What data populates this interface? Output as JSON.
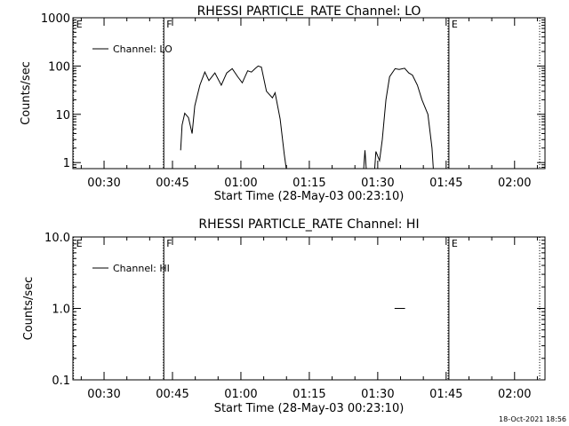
{
  "footer": {
    "timestamp": "18-Oct-2021 18:56"
  },
  "chart_data": [
    {
      "type": "line",
      "title": "RHESSI PARTICLE_RATE Channel: LO",
      "xlabel": "Start Time (28-May-03 00:23:10)",
      "ylabel": "Counts/sec",
      "x_unit": "minutes of day (00:00 = 0)",
      "xlim": [
        23.17,
        126.67
      ],
      "ylim": [
        0.75,
        1000
      ],
      "y_scale": "log",
      "x_ticks": [
        {
          "value": 30,
          "label": "00:30"
        },
        {
          "value": 45,
          "label": "00:45"
        },
        {
          "value": 60,
          "label": "01:00"
        },
        {
          "value": 75,
          "label": "01:15"
        },
        {
          "value": 90,
          "label": "01:30"
        },
        {
          "value": 105,
          "label": "01:45"
        },
        {
          "value": 120,
          "label": "02:00"
        }
      ],
      "y_ticks": [
        {
          "value": 1,
          "label": "1"
        },
        {
          "value": 10,
          "label": "10"
        },
        {
          "value": 100,
          "label": "100"
        },
        {
          "value": 1000,
          "label": "1000"
        }
      ],
      "markers": [
        {
          "label": "E",
          "x": 23.3,
          "style": "dotted"
        },
        {
          "label": "F",
          "x": 43.1,
          "style": "solid"
        },
        {
          "label": "E",
          "x": 105.6,
          "style": "solid"
        }
      ],
      "extra_lines": [
        {
          "x": 43.0,
          "style": "dotted"
        },
        {
          "x": 105.4,
          "style": "dotted"
        },
        {
          "x": 125.5,
          "style": "dotted"
        }
      ],
      "legend": {
        "position": "top-left",
        "entries": [
          "Channel: LO"
        ]
      },
      "series": [
        {
          "name": "Channel: LO",
          "segments": [
            [
              [
                46.8,
                1.8
              ],
              [
                47.1,
                6
              ],
              [
                47.7,
                10.5
              ],
              [
                48.5,
                8.5
              ],
              [
                49.3,
                4
              ],
              [
                49.9,
                15
              ],
              [
                51.0,
                40
              ],
              [
                52.1,
                75
              ],
              [
                53.0,
                50
              ],
              [
                54.3,
                72
              ],
              [
                55.7,
                40
              ],
              [
                56.9,
                72
              ],
              [
                58.1,
                88
              ],
              [
                59.3,
                60
              ],
              [
                60.3,
                45
              ],
              [
                61.5,
                80
              ],
              [
                62.3,
                75
              ],
              [
                63.2,
                90
              ],
              [
                63.8,
                100
              ],
              [
                64.5,
                95
              ],
              [
                65.6,
                30
              ],
              [
                66.9,
                22
              ],
              [
                67.5,
                28
              ],
              [
                68.6,
                8
              ],
              [
                69.5,
                1.5
              ],
              [
                70.2,
                0.5
              ]
            ],
            [
              [
                86.8,
                0.5
              ],
              [
                87.2,
                1.8
              ],
              [
                87.6,
                0.5
              ]
            ],
            [
              [
                89.2,
                0.5
              ],
              [
                89.6,
                1.7
              ],
              [
                90.4,
                1.1
              ],
              [
                91.0,
                3
              ],
              [
                91.8,
                20
              ],
              [
                92.6,
                60
              ],
              [
                93.8,
                88
              ],
              [
                94.7,
                85
              ],
              [
                95.9,
                90
              ],
              [
                96.8,
                72
              ],
              [
                97.6,
                65
              ],
              [
                98.7,
                40
              ],
              [
                99.7,
                20
              ],
              [
                101.0,
                10
              ],
              [
                101.9,
                2
              ],
              [
                102.3,
                0.5
              ]
            ]
          ]
        }
      ]
    },
    {
      "type": "line",
      "title": "RHESSI PARTICLE_RATE Channel: HI",
      "xlabel": "Start Time (28-May-03 00:23:10)",
      "ylabel": "Counts/sec",
      "x_unit": "minutes of day (00:00 = 0)",
      "xlim": [
        23.17,
        126.67
      ],
      "ylim": [
        0.1,
        10
      ],
      "y_scale": "log",
      "x_ticks": [
        {
          "value": 30,
          "label": "00:30"
        },
        {
          "value": 45,
          "label": "00:45"
        },
        {
          "value": 60,
          "label": "01:00"
        },
        {
          "value": 75,
          "label": "01:15"
        },
        {
          "value": 90,
          "label": "01:30"
        },
        {
          "value": 105,
          "label": "01:45"
        },
        {
          "value": 120,
          "label": "02:00"
        }
      ],
      "y_ticks": [
        {
          "value": 0.1,
          "label": "0.1"
        },
        {
          "value": 1,
          "label": "1.0"
        },
        {
          "value": 10,
          "label": "10.0"
        }
      ],
      "markers": [
        {
          "label": "E",
          "x": 23.3,
          "style": "dotted"
        },
        {
          "label": "F",
          "x": 43.1,
          "style": "solid"
        },
        {
          "label": "E",
          "x": 105.6,
          "style": "solid"
        }
      ],
      "extra_lines": [
        {
          "x": 43.0,
          "style": "dotted"
        },
        {
          "x": 105.4,
          "style": "dotted"
        },
        {
          "x": 125.5,
          "style": "dotted"
        }
      ],
      "legend": {
        "position": "top-left",
        "entries": [
          "Channel: HI"
        ]
      },
      "series": [
        {
          "name": "Channel: HI",
          "segments": [
            [
              [
                93.7,
                1.0
              ],
              [
                96.0,
                1.0
              ]
            ]
          ]
        }
      ]
    }
  ]
}
